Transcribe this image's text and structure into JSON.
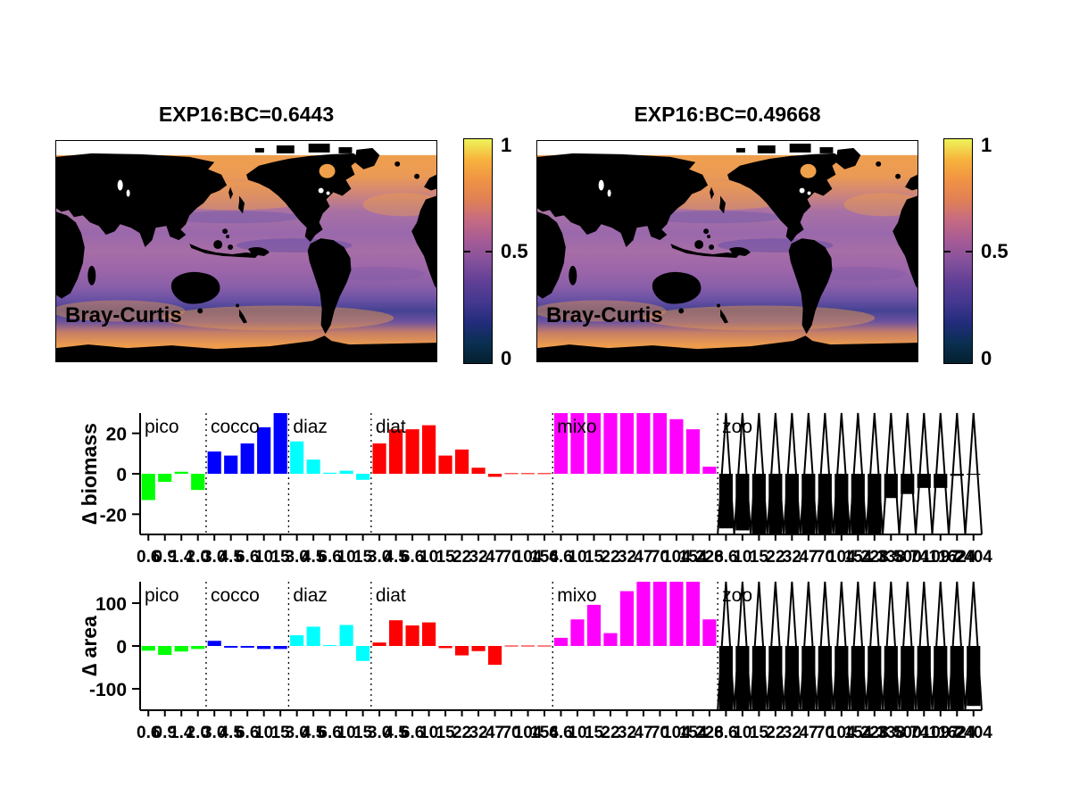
{
  "figure": {
    "background": "#ffffff",
    "kind": "matlab-style figure: two Bray-Curtis world maps with colorbars and two grouped bar charts"
  },
  "maps": [
    {
      "title": "EXP16:BC=0.6443",
      "label": "Bray-Curtis",
      "colorbar": {
        "max": "1",
        "mid": "0.5",
        "min": "0"
      }
    },
    {
      "title": "EXP16:BC=0.49668",
      "label": "Bray-Curtis",
      "colorbar": {
        "max": "1",
        "mid": "0.5",
        "min": "0"
      }
    }
  ],
  "colors": {
    "land": "#000000",
    "colormap_name": "thermal-like (dark teal to blue, purple, orange, yellow)",
    "colormap_stops": [
      "#04202e",
      "#0a2f52",
      "#232c7c",
      "#43388f",
      "#613f96",
      "#84519c",
      "#a55b96",
      "#c56a83",
      "#e08056",
      "#f09344",
      "#f7b33c",
      "#eef45a"
    ]
  },
  "chart_data": [
    {
      "type": "bar",
      "ylabel": "∆ biomass",
      "ylim": [
        -30,
        30
      ],
      "yticks": [
        20,
        0,
        -20
      ],
      "grid": false,
      "group_dividers": "dotted",
      "groups": [
        {
          "name": "pico",
          "color": "#00ff00",
          "sizes": [
            "0.6",
            "0.9",
            "1.4",
            "2.0"
          ],
          "values": [
            -13,
            -4,
            1,
            -8
          ]
        },
        {
          "name": "cocco",
          "color": "#0000ff",
          "sizes": [
            "3.0",
            "4.5",
            "6.6",
            "10",
            "15"
          ],
          "values": [
            11,
            9,
            15,
            23,
            30
          ]
        },
        {
          "name": "diaz",
          "color": "#00ffff",
          "sizes": [
            "3.0",
            "4.5",
            "6.6",
            "10",
            "15"
          ],
          "values": [
            16,
            7,
            0.5,
            1.5,
            -3
          ]
        },
        {
          "name": "diat",
          "color": "#ff0000",
          "sizes": [
            "3.0",
            "4.5",
            "6.6",
            "10",
            "15",
            "22",
            "32",
            "47",
            "70",
            "104",
            "154"
          ],
          "values": [
            15,
            22,
            22,
            24,
            9,
            12,
            3,
            -1.5,
            0.3,
            0.3,
            0.3
          ]
        },
        {
          "name": "mixo",
          "color": "#ff00ff",
          "sizes": [
            "6.6",
            "10",
            "15",
            "22",
            "32",
            "47",
            "70",
            "104",
            "154",
            "228"
          ],
          "values": [
            30,
            30,
            30,
            30,
            30,
            30,
            30,
            27,
            22,
            3.5
          ]
        },
        {
          "name": "zoo",
          "color": "#000000",
          "zigzag": true,
          "sizes": [
            "6.6",
            "10",
            "15",
            "22",
            "32",
            "47",
            "70",
            "104",
            "154",
            "228",
            "338",
            "500",
            "741",
            "1097",
            "1624",
            "2404"
          ],
          "values": [
            -27,
            -28,
            -30,
            -30,
            -30,
            -30,
            -30,
            -30,
            -30,
            -30,
            -12,
            -10,
            -7,
            -7,
            -1,
            -0.5
          ]
        }
      ]
    },
    {
      "type": "bar",
      "ylabel": "∆ area",
      "ylim": [
        -150,
        150
      ],
      "yticks": [
        100,
        0,
        -100
      ],
      "grid": false,
      "group_dividers": "dotted",
      "groups": [
        {
          "name": "pico",
          "color": "#00ff00",
          "sizes": [
            "0.6",
            "0.9",
            "1.4",
            "2.0"
          ],
          "values": [
            -11,
            -21,
            -13,
            -7
          ]
        },
        {
          "name": "cocco",
          "color": "#0000ff",
          "sizes": [
            "3.0",
            "4.5",
            "6.6",
            "10",
            "15"
          ],
          "values": [
            12,
            -4,
            -4,
            -7,
            -7
          ]
        },
        {
          "name": "diaz",
          "color": "#00ffff",
          "sizes": [
            "3.0",
            "4.5",
            "6.6",
            "10",
            "15"
          ],
          "values": [
            25,
            45,
            2,
            49,
            -35
          ]
        },
        {
          "name": "diat",
          "color": "#ff0000",
          "sizes": [
            "3.0",
            "4.5",
            "6.6",
            "10",
            "15",
            "22",
            "32",
            "47",
            "70",
            "104",
            "154"
          ],
          "values": [
            8,
            60,
            48,
            55,
            -5,
            -22,
            -12,
            -44,
            1,
            1,
            1
          ]
        },
        {
          "name": "mixo",
          "color": "#ff00ff",
          "sizes": [
            "6.6",
            "10",
            "15",
            "22",
            "32",
            "47",
            "70",
            "104",
            "154",
            "228"
          ],
          "values": [
            19,
            62,
            96,
            30,
            128,
            150,
            150,
            150,
            150,
            62
          ]
        },
        {
          "name": "zoo",
          "color": "#000000",
          "zigzag": true,
          "sizes": [
            "6.6",
            "10",
            "15",
            "22",
            "32",
            "47",
            "70",
            "104",
            "154",
            "228",
            "338",
            "500",
            "741",
            "1097",
            "1624",
            "2404"
          ],
          "values": [
            -150,
            -150,
            -150,
            -150,
            -150,
            -150,
            -150,
            -150,
            -150,
            -150,
            -150,
            -150,
            -150,
            -150,
            -150,
            -140
          ]
        }
      ]
    }
  ]
}
